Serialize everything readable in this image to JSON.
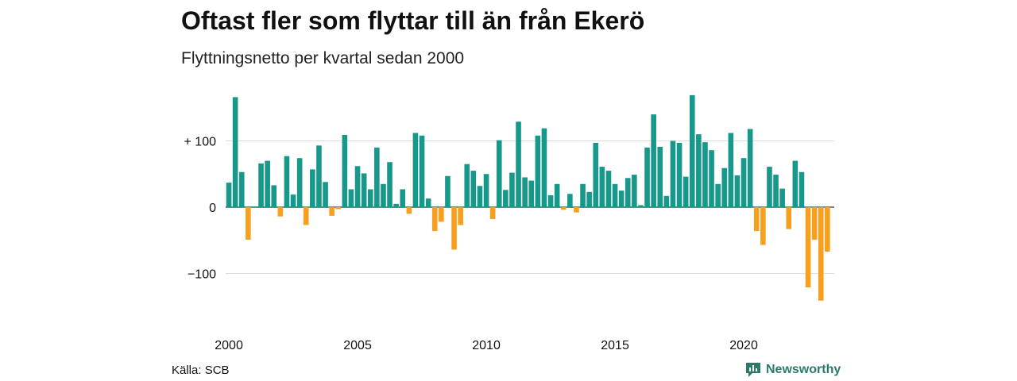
{
  "header": {
    "title": "Oftast fler som flyttar till än från Ekerö",
    "subtitle": "Flyttningsnetto per kvartal sedan 2000"
  },
  "footer": {
    "source": "Källa: SCB",
    "brand": "Newsworthy",
    "brand_icon": "newsworthy-logo-icon"
  },
  "colors": {
    "positive": "#17988a",
    "negative": "#f6a01d",
    "grid": "#dddddd",
    "axis": "#333333"
  },
  "chart_data": {
    "type": "bar",
    "title": "Oftast fler som flyttar till än från Ekerö",
    "subtitle": "Flyttningsnetto per kvartal sedan 2000",
    "xlabel": "",
    "ylabel": "",
    "ylim": [
      -150,
      175
    ],
    "yticks": [
      100,
      0,
      -100
    ],
    "ytick_labels": [
      "+ 100",
      "0",
      "−100"
    ],
    "xticks": [
      2000,
      2005,
      2010,
      2015,
      2020
    ],
    "xtick_labels": [
      "2000",
      "2005",
      "2010",
      "2015",
      "2020"
    ],
    "grid": true,
    "start_year": 2000,
    "values": [
      37,
      166,
      53,
      -49,
      1,
      66,
      70,
      33,
      -14,
      77,
      19,
      74,
      -27,
      57,
      93,
      38,
      -13,
      -3,
      109,
      27,
      62,
      51,
      27,
      90,
      35,
      68,
      5,
      27,
      -10,
      112,
      108,
      13,
      -36,
      -22,
      47,
      -64,
      -27,
      65,
      55,
      32,
      50,
      -18,
      101,
      26,
      52,
      129,
      45,
      40,
      108,
      119,
      18,
      35,
      -4,
      20,
      -8,
      35,
      23,
      97,
      61,
      55,
      35,
      25,
      44,
      49,
      3,
      90,
      140,
      91,
      17,
      100,
      97,
      46,
      169,
      110,
      98,
      86,
      35,
      59,
      112,
      48,
      74,
      118,
      -36,
      -57,
      61,
      49,
      28,
      -33,
      70,
      53,
      -121,
      -49,
      -141,
      -67
    ]
  }
}
